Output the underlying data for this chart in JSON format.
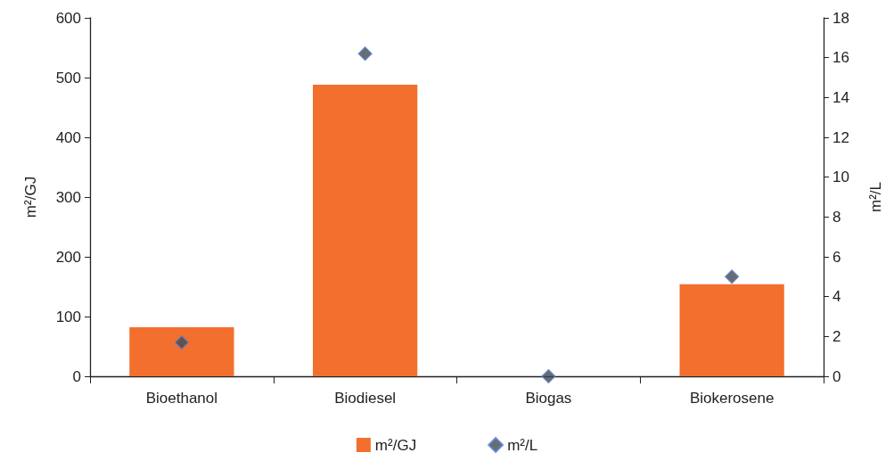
{
  "chart_data": {
    "type": "bar",
    "categories": [
      "Bioethanol",
      "Biodiesel",
      "Biogas",
      "Biokerosene"
    ],
    "series": [
      {
        "name": "m²/GJ",
        "color": "#f26f2d",
        "values": [
          82,
          488,
          0,
          154
        ]
      },
      {
        "name": "m²/L",
        "type": "scatter",
        "axis": "y2",
        "color": "#414952",
        "values": [
          1.7,
          16.2,
          0,
          5.0
        ]
      }
    ],
    "ylabel": "m²/GJ",
    "y2label": "m²/L",
    "ylim": [
      0,
      600
    ],
    "yticks": [
      0,
      100,
      200,
      300,
      400,
      500,
      600
    ],
    "y2lim": [
      0,
      18
    ],
    "y2ticks": [
      0,
      2,
      4,
      6,
      8,
      10,
      12,
      14,
      16,
      18
    ],
    "marker": "diamond",
    "grid": false,
    "legend": "bottom"
  }
}
